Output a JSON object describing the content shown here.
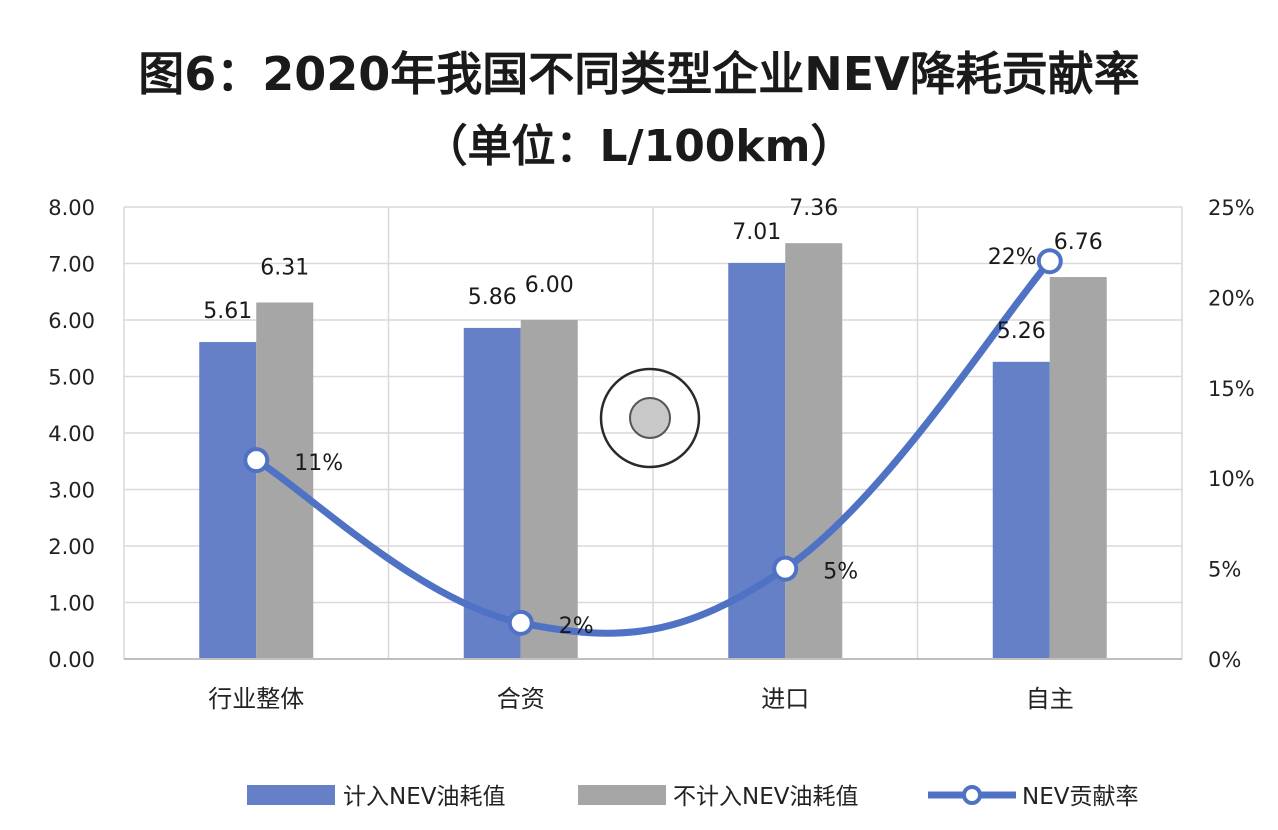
{
  "chart_data": {
    "type": "bar",
    "title": "图6：2020年我国不同类型企业NEV降耗贡献率",
    "subtitle": "（单位：L/100km）",
    "categories": [
      "行业整体",
      "合资",
      "进口",
      "自主"
    ],
    "series": [
      {
        "name": "计入NEV油耗值",
        "type": "bar",
        "axis": "left",
        "color": "#6680c8",
        "values": [
          5.61,
          5.86,
          7.01,
          5.26
        ]
      },
      {
        "name": "不计入NEV油耗值",
        "type": "bar",
        "axis": "left",
        "color": "#a6a6a6",
        "values": [
          6.31,
          6.0,
          7.36,
          6.76
        ]
      },
      {
        "name": "NEV贡献率",
        "type": "line",
        "axis": "right",
        "color": "#4f72c4",
        "values": [
          11,
          2,
          5,
          22
        ]
      }
    ],
    "bar_labels": [
      [
        "5.61",
        "5.86",
        "7.01",
        "5.26"
      ],
      [
        "6.31",
        "6.00",
        "7.36",
        "6.76"
      ]
    ],
    "line_labels": [
      "11%",
      "2%",
      "5%",
      "22%"
    ],
    "y_left": {
      "min": 0,
      "max": 8,
      "ticks": [
        "0.00",
        "1.00",
        "2.00",
        "3.00",
        "4.00",
        "5.00",
        "6.00",
        "7.00",
        "8.00"
      ]
    },
    "y_right": {
      "min": 0,
      "max": 25,
      "ticks": [
        "0%",
        "5%",
        "10%",
        "15%",
        "20%",
        "25%"
      ]
    },
    "grid": true,
    "legend_position": "bottom"
  }
}
